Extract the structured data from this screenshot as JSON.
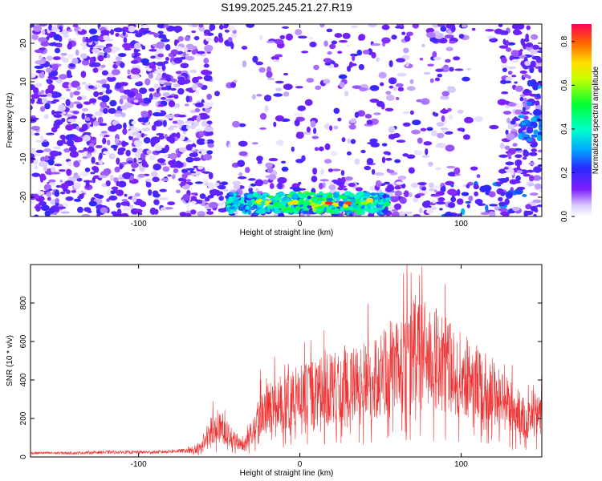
{
  "title": "S199.2025.245.21.27.R19",
  "chart_data": [
    {
      "type": "heatmap",
      "xlabel": "Height of straight line (km)",
      "ylabel": "Frequency (Hz)",
      "xlim": [
        -167,
        150
      ],
      "ylim": [
        -25,
        25
      ],
      "xticks": [
        -100,
        0,
        100
      ],
      "xtick_labels": [
        "-100",
        "0",
        "100"
      ],
      "yticks": [
        -20,
        -10,
        0,
        10,
        20
      ],
      "ytick_labels": [
        "-20",
        "-10",
        "0",
        "10",
        "20"
      ],
      "colorbar": {
        "label": "Normalized spectral amplitude",
        "range": [
          0,
          0.88
        ],
        "ticks": [
          0,
          0.2,
          0.4,
          0.6,
          0.8
        ],
        "tick_labels": [
          "0.0",
          "0.2",
          "0.4",
          "0.6",
          "0.8"
        ]
      },
      "features": [
        {
          "name": "strong band",
          "x_range": [
            -45,
            55
          ],
          "freq_center": -21.5,
          "peak_amplitude": 0.85
        },
        {
          "name": "right edge patch",
          "x_range": [
            137,
            150
          ],
          "freq_center": 2,
          "peak_amplitude": 0.3
        }
      ]
    },
    {
      "type": "line",
      "xlabel": "Height of straight line (km)",
      "ylabel": "SNR (10 * v/v)",
      "xlim": [
        -167,
        150
      ],
      "ylim": [
        0,
        1000
      ],
      "xticks": [
        -100,
        0,
        100
      ],
      "xtick_labels": [
        "-100",
        "0",
        "100"
      ],
      "yticks": [
        0,
        200,
        400,
        600,
        800
      ],
      "ytick_labels": [
        "0",
        "200",
        "400",
        "600",
        "800"
      ],
      "color": "#ee3333",
      "envelope": {
        "x": [
          -167,
          -140,
          -120,
          -90,
          -70,
          -62,
          -55,
          -50,
          -42,
          -35,
          -25,
          -10,
          0,
          15,
          30,
          45,
          55,
          62,
          68,
          75,
          85,
          95,
          105,
          115,
          125,
          135,
          142,
          150
        ],
        "y": [
          25,
          25,
          30,
          30,
          40,
          70,
          200,
          230,
          130,
          70,
          310,
          400,
          430,
          480,
          520,
          560,
          640,
          700,
          780,
          760,
          700,
          620,
          560,
          500,
          420,
          330,
          260,
          300
        ]
      }
    }
  ]
}
